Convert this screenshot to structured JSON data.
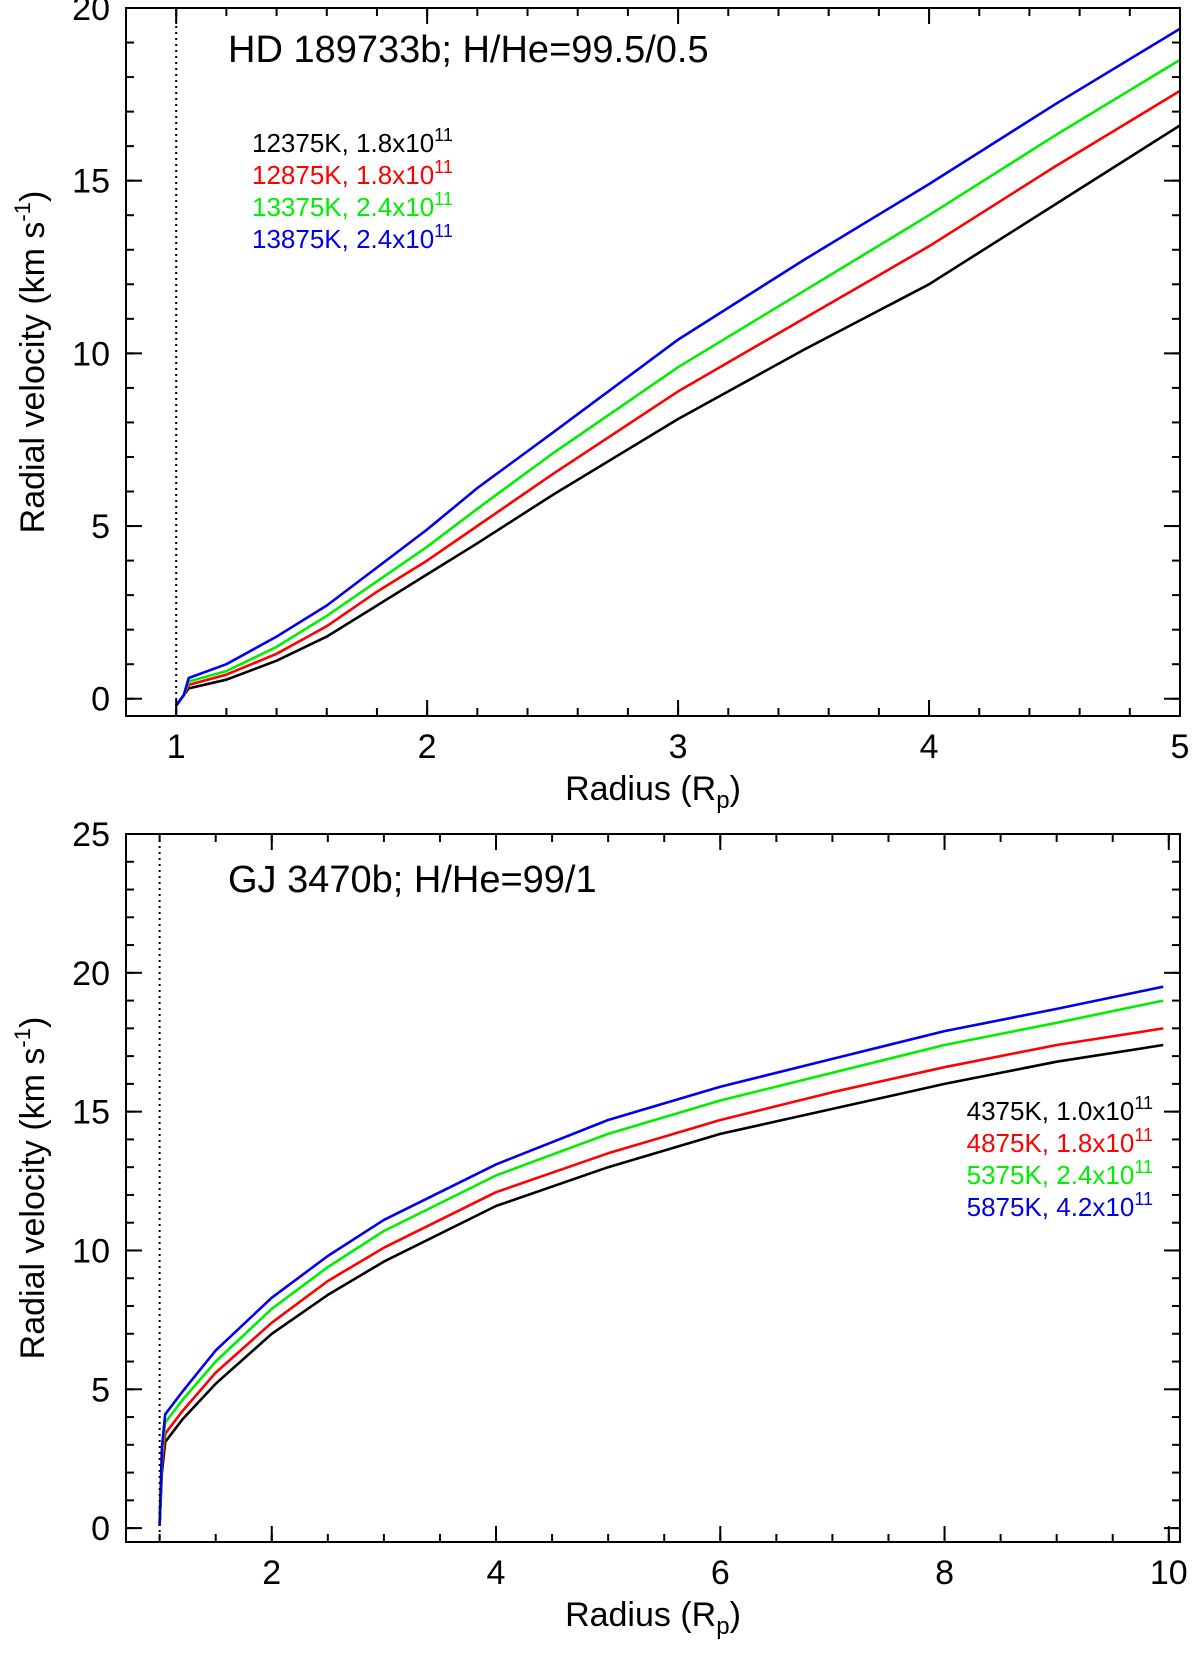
{
  "chart_data": [
    {
      "type": "line",
      "title": "HD 189733b; H/He=99.5/0.5",
      "xlabel": {
        "text": "Radius (R",
        "sub": "p",
        "close": ")"
      },
      "ylabel": {
        "text": "Radial velocity (km s",
        "sup": "-1",
        "close": ")"
      },
      "xlim": [
        0.8,
        5
      ],
      "ylim": [
        -0.5,
        20
      ],
      "xticks": [
        1,
        2,
        3,
        4,
        5
      ],
      "yticks": [
        0,
        5,
        10,
        15,
        20
      ],
      "xminor": 0.2,
      "yminor": 1,
      "vline": 1,
      "legend_position": "top-left",
      "series": [
        {
          "name": "12375K, 1.8x10^11",
          "label": "12375K, 1.8x10",
          "exp": "11",
          "color": "#000000",
          "x": [
            1.0,
            1.02,
            1.03,
            1.05,
            1.2,
            1.4,
            1.6,
            1.8,
            2.0,
            2.2,
            2.5,
            3.0,
            3.5,
            4.0,
            4.5,
            5.0
          ],
          "y": [
            -0.2,
            0.0,
            0.1,
            0.3,
            0.55,
            1.1,
            1.8,
            2.7,
            3.6,
            4.5,
            5.9,
            8.1,
            10.1,
            12.0,
            14.3,
            16.6
          ]
        },
        {
          "name": "12875K, 1.8x10^11",
          "label": "12875K, 1.8x10",
          "exp": "11",
          "color": "#ff0000",
          "x": [
            1.0,
            1.02,
            1.03,
            1.05,
            1.2,
            1.4,
            1.6,
            1.8,
            2.0,
            2.2,
            2.5,
            3.0,
            3.5,
            4.0,
            4.5,
            5.0
          ],
          "y": [
            -0.2,
            0.0,
            0.1,
            0.4,
            0.7,
            1.3,
            2.1,
            3.1,
            4.0,
            5.0,
            6.5,
            8.9,
            11.0,
            13.1,
            15.4,
            17.6
          ]
        },
        {
          "name": "13375K, 2.4x10^11",
          "label": "13375K, 2.4x10",
          "exp": "11",
          "color": "#00ee00",
          "x": [
            1.0,
            1.02,
            1.03,
            1.05,
            1.2,
            1.4,
            1.6,
            1.8,
            2.0,
            2.2,
            2.5,
            3.0,
            3.5,
            4.0,
            4.5,
            5.0
          ],
          "y": [
            -0.2,
            0.0,
            0.1,
            0.5,
            0.8,
            1.5,
            2.4,
            3.4,
            4.4,
            5.5,
            7.1,
            9.6,
            11.8,
            14.0,
            16.3,
            18.5
          ]
        },
        {
          "name": "13875K, 2.4x10^11",
          "label": "13875K, 2.4x10",
          "exp": "11",
          "color": "#0000ee",
          "x": [
            1.0,
            1.02,
            1.03,
            1.05,
            1.2,
            1.4,
            1.6,
            1.8,
            2.0,
            2.2,
            2.5,
            3.0,
            3.5,
            4.0,
            4.5,
            5.0
          ],
          "y": [
            -0.2,
            0.0,
            0.1,
            0.6,
            1.0,
            1.8,
            2.7,
            3.8,
            4.9,
            6.1,
            7.7,
            10.4,
            12.7,
            14.9,
            17.2,
            19.4
          ]
        }
      ]
    },
    {
      "type": "line",
      "title": "GJ 3470b; H/He=99/1",
      "xlabel": {
        "text": "Radius (R",
        "sub": "p",
        "close": ")"
      },
      "ylabel": {
        "text": "Radial velocity (km s",
        "sup": "-1",
        "close": ")"
      },
      "xlim": [
        0.7,
        10.1
      ],
      "ylim": [
        -0.5,
        25
      ],
      "xticks": [
        2,
        4,
        6,
        8,
        10
      ],
      "yticks": [
        0,
        5,
        10,
        15,
        20,
        25
      ],
      "xminor": 0.5,
      "yminor": 1,
      "vline": 1,
      "legend_position": "right",
      "series": [
        {
          "name": "4375K, 1.0x10^11",
          "label": "4375K, 1.0x10",
          "exp": "11",
          "color": "#000000",
          "x": [
            1.0,
            1.02,
            1.05,
            1.2,
            1.5,
            2.0,
            2.5,
            3.0,
            4.0,
            5.0,
            6.0,
            7.0,
            8.0,
            9.0,
            9.95
          ],
          "y": [
            0.1,
            2.0,
            3.1,
            3.9,
            5.2,
            7.0,
            8.4,
            9.6,
            11.6,
            13.0,
            14.2,
            15.1,
            16.0,
            16.8,
            17.4
          ]
        },
        {
          "name": "4875K, 1.8x10^11",
          "label": "4875K, 1.8x10",
          "exp": "11",
          "color": "#ff0000",
          "x": [
            1.0,
            1.02,
            1.05,
            1.2,
            1.5,
            2.0,
            2.5,
            3.0,
            4.0,
            5.0,
            6.0,
            7.0,
            8.0,
            9.0,
            9.95
          ],
          "y": [
            0.1,
            2.3,
            3.4,
            4.2,
            5.6,
            7.4,
            8.9,
            10.1,
            12.1,
            13.5,
            14.7,
            15.7,
            16.6,
            17.4,
            18.0
          ]
        },
        {
          "name": "5375K, 2.4x10^11",
          "label": "5375K, 2.4x10",
          "exp": "11",
          "color": "#00ee00",
          "x": [
            1.0,
            1.02,
            1.05,
            1.2,
            1.5,
            2.0,
            2.5,
            3.0,
            4.0,
            5.0,
            6.0,
            7.0,
            8.0,
            9.0,
            9.95
          ],
          "y": [
            0.1,
            2.6,
            3.8,
            4.6,
            6.0,
            7.9,
            9.4,
            10.7,
            12.7,
            14.2,
            15.4,
            16.4,
            17.4,
            18.2,
            19.0
          ]
        },
        {
          "name": "5875K, 4.2x10^11",
          "label": "5875K, 4.2x10",
          "exp": "11",
          "color": "#0000ee",
          "x": [
            1.0,
            1.02,
            1.05,
            1.2,
            1.5,
            2.0,
            2.5,
            3.0,
            4.0,
            5.0,
            6.0,
            7.0,
            8.0,
            9.0,
            9.95
          ],
          "y": [
            0.1,
            2.9,
            4.1,
            4.9,
            6.4,
            8.3,
            9.8,
            11.1,
            13.1,
            14.7,
            15.9,
            16.9,
            17.9,
            18.7,
            19.5
          ]
        }
      ]
    }
  ]
}
